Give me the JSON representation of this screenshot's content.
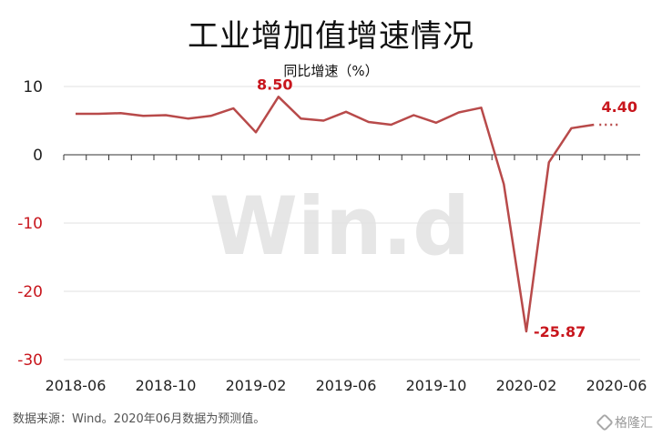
{
  "chart_data": {
    "type": "line",
    "title": "工业增加值增速情况",
    "subtitle": "同比增速（%）",
    "ylim": [
      -30,
      10
    ],
    "yticks": [
      10,
      0,
      -10,
      -20,
      -30
    ],
    "x_tick_labels": [
      "2018-06",
      "2018-10",
      "2019-02",
      "2019-06",
      "2019-10",
      "2020-02",
      "2020-06"
    ],
    "grid": true,
    "series": [
      {
        "values": [
          6.0,
          6.0,
          6.1,
          5.7,
          5.8,
          5.3,
          5.7,
          6.8,
          3.3,
          8.5,
          5.3,
          5.0,
          6.3,
          4.8,
          4.4,
          5.8,
          4.7,
          6.2,
          6.9,
          -4.3,
          -25.87,
          -1.1,
          3.9,
          4.4
        ],
        "forecast_value": 4.4
      }
    ],
    "annotations": [
      {
        "text": "8.50"
      },
      {
        "text": "-25.87"
      },
      {
        "text": "4.40"
      }
    ],
    "watermark": "Win.d",
    "colors": {
      "line": "#b84a4a",
      "annotation": "#c8161d",
      "negative_tick": "#c8161d",
      "positive_tick": "#222222",
      "grid": "#e2e2e2",
      "watermark": "#e6e6e6"
    }
  },
  "source_note": "数据来源：Wind。2020年06月数据为预测值。",
  "logo_text": "格隆汇"
}
